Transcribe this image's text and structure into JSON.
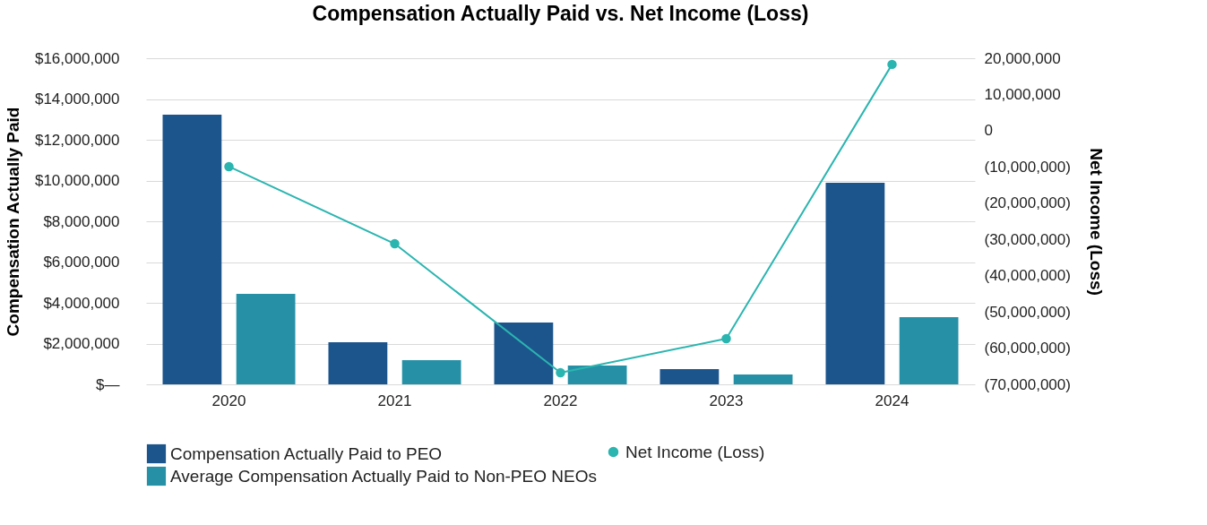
{
  "chart_data": {
    "type": "bar",
    "title": "Compensation Actually Paid vs. Net Income (Loss)",
    "ylabel": "Compensation Actually Paid",
    "y2label": "Net Income (Loss)",
    "categories": [
      "2020",
      "2021",
      "2022",
      "2023",
      "2024"
    ],
    "series": [
      {
        "name": "Compensation Actually Paid to PEO",
        "color": "#1c558c",
        "values": [
          13230000,
          2070000,
          3030000,
          750000,
          9890000
        ]
      },
      {
        "name": "Average Compensation Actually Paid to Non-PEO NEOs",
        "color": "#2691a6",
        "values": [
          4440000,
          1190000,
          920000,
          480000,
          3300000
        ]
      },
      {
        "name": "Net Income (Loss)",
        "type": "line",
        "axis": "y2",
        "color": "#2bb5b0",
        "values": [
          -9900000,
          -31200000,
          -66800000,
          -57400000,
          18300000
        ]
      }
    ],
    "ylim": [
      0,
      16000000
    ],
    "yticks": [
      {
        "value": 0,
        "label": "$—"
      },
      {
        "value": 2000000,
        "label": "$2,000,000"
      },
      {
        "value": 4000000,
        "label": "$4,000,000"
      },
      {
        "value": 6000000,
        "label": "$6,000,000"
      },
      {
        "value": 8000000,
        "label": "$8,000,000"
      },
      {
        "value": 10000000,
        "label": "$10,000,000"
      },
      {
        "value": 12000000,
        "label": "$12,000,000"
      },
      {
        "value": 14000000,
        "label": "$14,000,000"
      },
      {
        "value": 16000000,
        "label": "$16,000,000"
      }
    ],
    "y2lim": [
      -70000000,
      20000000
    ],
    "y2ticks": [
      {
        "value": -70000000,
        "label": "(70,000,000)"
      },
      {
        "value": -60000000,
        "label": "(60,000,000)"
      },
      {
        "value": -50000000,
        "label": "(50,000,000)"
      },
      {
        "value": -40000000,
        "label": "(40,000,000)"
      },
      {
        "value": -30000000,
        "label": "(30,000,000)"
      },
      {
        "value": -20000000,
        "label": "(20,000,000)"
      },
      {
        "value": -10000000,
        "label": "(10,000,000)"
      },
      {
        "value": 0,
        "label": "0"
      },
      {
        "value": 10000000,
        "label": "10,000,000"
      },
      {
        "value": 20000000,
        "label": "20,000,000"
      }
    ],
    "grid": "y",
    "legend": "bottom",
    "marker": "circle"
  }
}
